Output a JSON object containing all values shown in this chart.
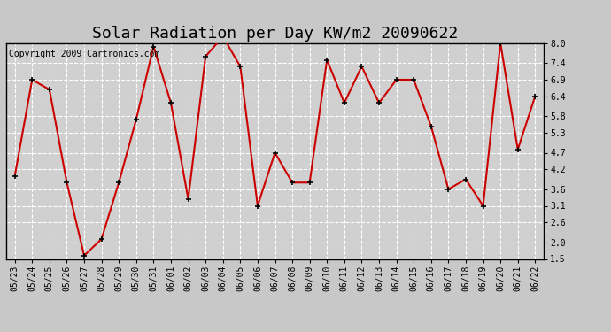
{
  "title": "Solar Radiation per Day KW/m2 20090622",
  "copyright": "Copyright 2009 Cartronics.com",
  "dates": [
    "05/23",
    "05/24",
    "05/25",
    "05/26",
    "05/27",
    "05/28",
    "05/29",
    "05/30",
    "05/31",
    "06/01",
    "06/02",
    "06/03",
    "06/04",
    "06/05",
    "06/06",
    "06/07",
    "06/08",
    "06/09",
    "06/10",
    "06/11",
    "06/12",
    "06/13",
    "06/14",
    "06/15",
    "06/16",
    "06/17",
    "06/18",
    "06/19",
    "06/20",
    "06/21",
    "06/22"
  ],
  "values": [
    4.0,
    6.9,
    6.6,
    3.8,
    1.6,
    2.1,
    3.8,
    5.7,
    7.9,
    6.2,
    3.3,
    7.6,
    8.2,
    7.3,
    3.1,
    4.7,
    3.8,
    3.8,
    7.5,
    6.2,
    7.3,
    6.2,
    6.9,
    6.9,
    5.5,
    3.6,
    3.9,
    3.1,
    8.0,
    4.8,
    6.4
  ],
  "line_color": "#cc0000",
  "marker_color": "#000000",
  "bg_color": "#c8c8c8",
  "plot_bg_color": "#d0d0d0",
  "grid_color": "#ffffff",
  "title_fontsize": 13,
  "copyright_fontsize": 7,
  "tick_fontsize": 7,
  "ylim": [
    1.5,
    8.0
  ],
  "yticks": [
    1.5,
    2.0,
    2.6,
    3.1,
    3.6,
    4.2,
    4.7,
    5.3,
    5.8,
    6.4,
    6.9,
    7.4,
    8.0
  ]
}
